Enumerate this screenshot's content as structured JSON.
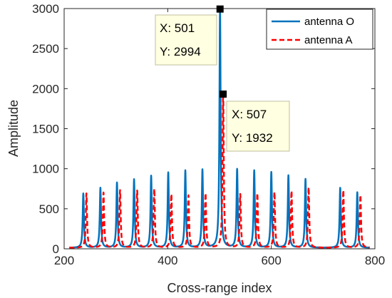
{
  "chart_data": {
    "type": "line",
    "xlabel": "Cross-range index",
    "ylabel": "Amplitude",
    "xlim": [
      200,
      800
    ],
    "ylim": [
      0,
      3000
    ],
    "x_ticks": [
      200,
      400,
      600,
      800
    ],
    "y_ticks": [
      0,
      500,
      1000,
      1500,
      2000,
      2500,
      3000
    ],
    "grid": false,
    "legend_position": "top-right",
    "series": [
      {
        "name": "antenna O",
        "color": "#0072BD",
        "style": "solid",
        "peaks": [
          {
            "x": 237,
            "y": 690
          },
          {
            "x": 270,
            "y": 760
          },
          {
            "x": 302,
            "y": 825
          },
          {
            "x": 335,
            "y": 865
          },
          {
            "x": 368,
            "y": 910
          },
          {
            "x": 401,
            "y": 950
          },
          {
            "x": 434,
            "y": 975
          },
          {
            "x": 467,
            "y": 985
          },
          {
            "x": 501,
            "y": 2994
          },
          {
            "x": 534,
            "y": 990
          },
          {
            "x": 567,
            "y": 975
          },
          {
            "x": 600,
            "y": 955
          },
          {
            "x": 633,
            "y": 915
          },
          {
            "x": 666,
            "y": 870
          },
          {
            "x": 733,
            "y": 760
          },
          {
            "x": 766,
            "y": 705
          }
        ]
      },
      {
        "name": "antenna A",
        "color": "#FF0000",
        "style": "dashed",
        "peaks": [
          {
            "x": 243,
            "y": 690
          },
          {
            "x": 276,
            "y": 700
          },
          {
            "x": 308,
            "y": 730
          },
          {
            "x": 341,
            "y": 725
          },
          {
            "x": 374,
            "y": 745
          },
          {
            "x": 407,
            "y": 680
          },
          {
            "x": 440,
            "y": 665
          },
          {
            "x": 473,
            "y": 690
          },
          {
            "x": 507,
            "y": 1932
          },
          {
            "x": 540,
            "y": 680
          },
          {
            "x": 573,
            "y": 690
          },
          {
            "x": 606,
            "y": 705
          },
          {
            "x": 639,
            "y": 720
          },
          {
            "x": 672,
            "y": 765
          },
          {
            "x": 739,
            "y": 730
          },
          {
            "x": 772,
            "y": 670
          }
        ]
      }
    ],
    "annotations": [
      {
        "x_text": "X: 501",
        "y_text": "Y: 2994",
        "x": 501,
        "y": 2994
      },
      {
        "x_text": "X: 507",
        "y_text": "Y: 1932",
        "x": 507,
        "y": 1932
      }
    ]
  }
}
